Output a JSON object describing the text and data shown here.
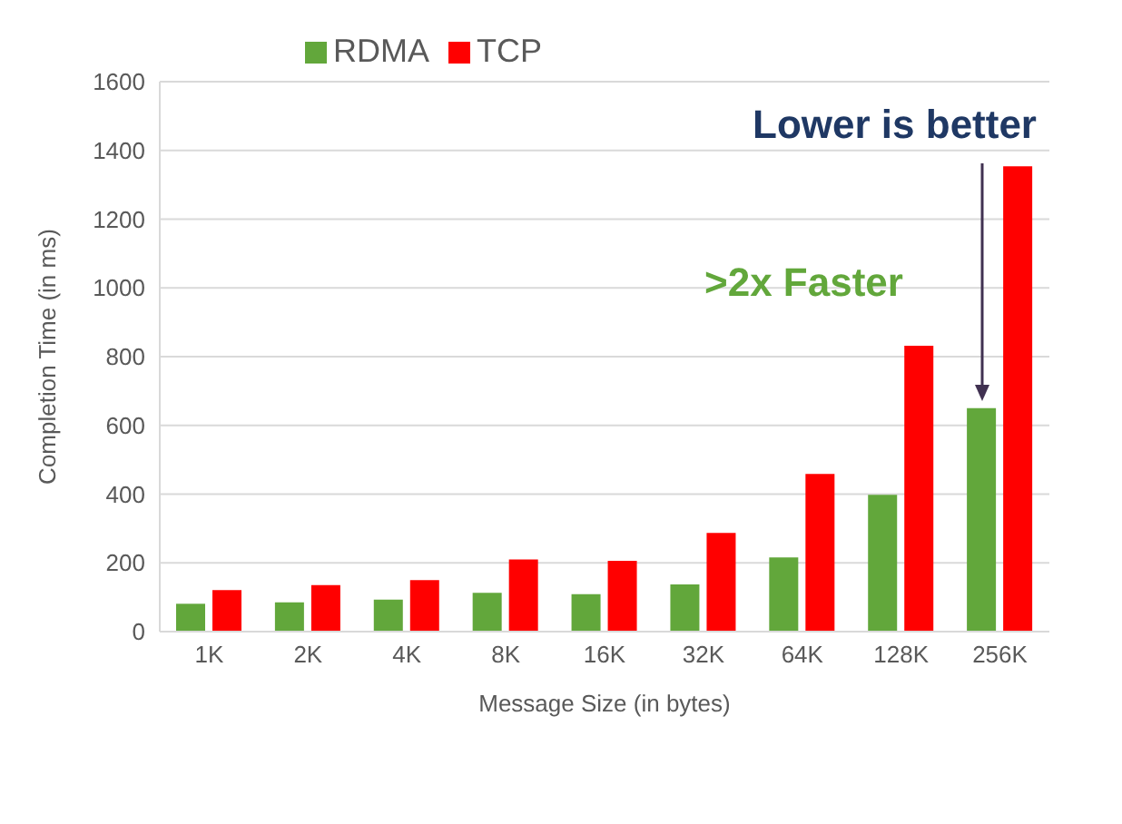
{
  "chart_data": {
    "type": "bar",
    "xlabel": "Message Size (in bytes)",
    "ylabel": "Completion Time (in ms)",
    "categories": [
      "1K",
      "2K",
      "4K",
      "8K",
      "16K",
      "32K",
      "64K",
      "128K",
      "256K"
    ],
    "series": [
      {
        "name": "RDMA",
        "color": "#62a73b",
        "values": [
          81,
          85,
          93,
          113,
          109,
          137,
          216,
          398,
          650
        ]
      },
      {
        "name": "TCP",
        "color": "#ff0000",
        "values": [
          121,
          135,
          150,
          210,
          206,
          287,
          459,
          832,
          1354
        ]
      }
    ],
    "ylim": [
      0,
      1600
    ],
    "yticks": [
      0,
      200,
      400,
      600,
      800,
      1000,
      1200,
      1400,
      1600
    ],
    "grid": "y",
    "legend": "top",
    "annotations": [
      "Lower is better",
      ">2x Faster"
    ]
  }
}
